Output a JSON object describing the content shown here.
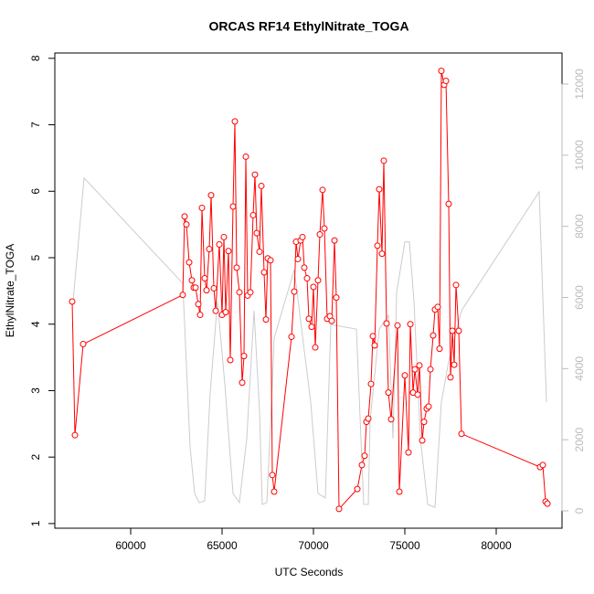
{
  "chart_data": {
    "type": "line",
    "title": "ORCAS RF14 EthylNitrate_TOGA",
    "xlabel": "UTC Seconds",
    "ylabel": "EthylNitrate_TOGA",
    "xlim": [
      55850,
      83600
    ],
    "xticks": [
      60000,
      65000,
      70000,
      75000,
      80000
    ],
    "ylim": [
      0.93,
      8.08
    ],
    "yticks": [
      1,
      2,
      3,
      4,
      5,
      6,
      7,
      8
    ],
    "y2lim": [
      -488,
      12874
    ],
    "y2ticks": [
      0,
      2000,
      4000,
      6000,
      8000,
      10000,
      12000
    ],
    "series": [
      {
        "color": "#cccccc",
        "axis": "y2",
        "markers": false,
        "x": [
          56850,
          57450,
          62850,
          63250,
          63500,
          63750,
          64050,
          64350,
          64750,
          65150,
          65600,
          65950,
          66350,
          66750,
          67050,
          67200,
          67450,
          67750,
          67850,
          68950,
          69850,
          70250,
          70650,
          70950,
          72350,
          72600,
          72750,
          73000,
          73100,
          73600,
          74100,
          74350,
          74550,
          75000,
          75250,
          75500,
          75850,
          76250,
          76650,
          77000,
          77400,
          78100,
          82350,
          82750
        ],
        "values": [
          5890,
          9360,
          6400,
          1800,
          490,
          230,
          280,
          3320,
          5890,
          3570,
          490,
          230,
          2030,
          5630,
          2800,
          180,
          230,
          3570,
          4860,
          6780,
          3060,
          490,
          360,
          5240,
          5110,
          2030,
          180,
          180,
          2540,
          5110,
          5500,
          2030,
          6140,
          7560,
          7560,
          5890,
          2030,
          180,
          100,
          3060,
          4210,
          5630,
          8970,
          3060
        ]
      },
      {
        "color": "#ff0000",
        "markers": true,
        "x": [
          56800,
          56950,
          57400,
          62850,
          62950,
          63050,
          63200,
          63350,
          63450,
          63550,
          63700,
          63800,
          63900,
          64050,
          64150,
          64300,
          64400,
          64550,
          64650,
          64850,
          65000,
          65100,
          65200,
          65350,
          65450,
          65600,
          65700,
          65800,
          65950,
          66100,
          66200,
          66300,
          66400,
          66550,
          66700,
          66800,
          66900,
          67050,
          67150,
          67300,
          67400,
          67500,
          67650,
          67750,
          67850,
          68800,
          68950,
          69050,
          69150,
          69300,
          69400,
          69500,
          69650,
          69750,
          69900,
          70000,
          70100,
          70250,
          70350,
          70500,
          70600,
          70750,
          70900,
          71000,
          71150,
          71250,
          71400,
          72400,
          72650,
          72800,
          72900,
          73000,
          73150,
          73250,
          73350,
          73500,
          73600,
          73750,
          73850,
          74000,
          74100,
          74250,
          74600,
          74700,
          75000,
          75200,
          75300,
          75450,
          75550,
          75700,
          75800,
          75950,
          76050,
          76200,
          76300,
          76400,
          76550,
          76650,
          76800,
          76900,
          77000,
          77150,
          77250,
          77400,
          77500,
          77600,
          77700,
          77800,
          77950,
          78100,
          82400,
          82550,
          82700,
          82800
        ],
        "values": [
          4.34,
          2.33,
          3.7,
          4.44,
          5.62,
          5.5,
          4.93,
          4.66,
          4.55,
          4.55,
          4.3,
          4.14,
          5.75,
          4.69,
          4.51,
          5.13,
          5.94,
          4.54,
          4.2,
          5.2,
          4.14,
          5.31,
          4.18,
          5.1,
          3.46,
          5.77,
          7.05,
          4.85,
          4.48,
          3.12,
          3.52,
          6.52,
          4.43,
          4.48,
          5.64,
          6.25,
          5.37,
          5.09,
          6.08,
          4.78,
          4.07,
          4.99,
          4.96,
          1.73,
          1.48,
          3.81,
          4.49,
          5.24,
          4.98,
          5.26,
          5.31,
          4.85,
          4.69,
          4.08,
          3.96,
          4.56,
          3.65,
          4.66,
          5.35,
          6.02,
          5.44,
          4.08,
          4.12,
          4.05,
          5.26,
          4.4,
          1.22,
          1.52,
          1.88,
          2.02,
          2.53,
          2.58,
          3.1,
          3.82,
          3.68,
          5.18,
          6.03,
          5.06,
          6.46,
          4.01,
          2.97,
          2.57,
          3.98,
          1.48,
          3.23,
          2.07,
          4.0,
          2.97,
          3.32,
          2.94,
          3.38,
          2.25,
          2.53,
          2.73,
          2.76,
          3.32,
          3.83,
          4.22,
          4.26,
          3.63,
          7.81,
          7.6,
          7.66,
          5.81,
          3.2,
          3.9,
          3.39,
          4.59,
          3.9,
          2.35,
          1.85,
          1.88,
          1.33,
          1.3
        ]
      }
    ]
  }
}
